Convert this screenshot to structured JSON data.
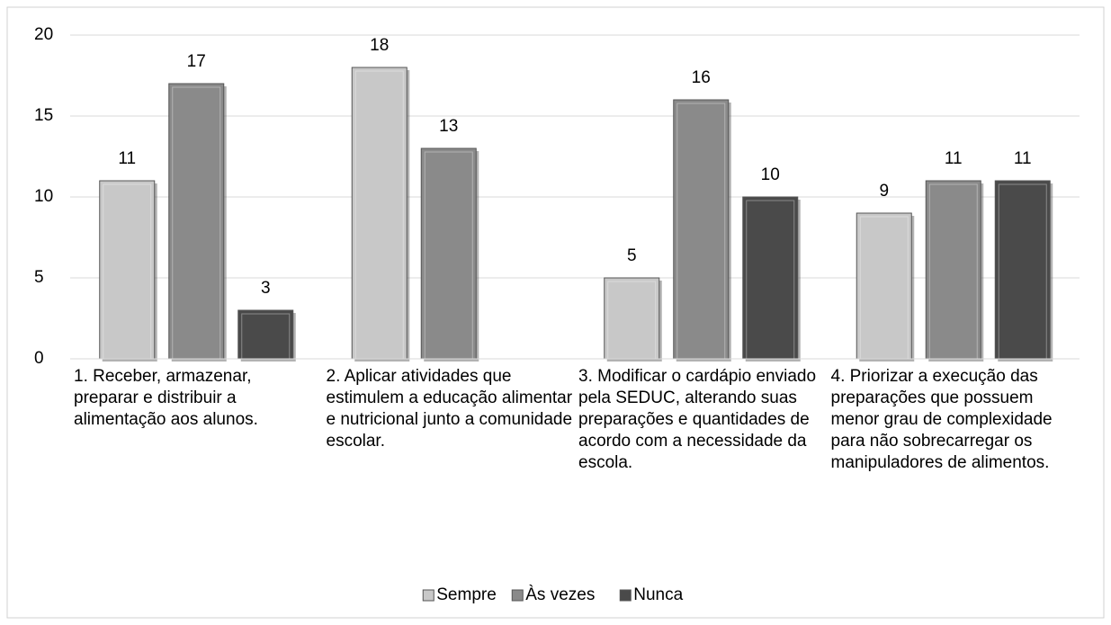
{
  "chart_data": {
    "type": "bar",
    "categories": [
      "1. Receber, armazenar, preparar e distribuir a alimentação aos alunos.",
      "2. Aplicar atividades que estimulem a educação alimentar e nutricional junto a comunidade escolar.",
      "3. Modificar o cardápio enviado pela SEDUC, alterando suas preparações e quantidades de acordo com a necessidade da escola.",
      "4. Priorizar a execução das preparações que possuem menor grau de complexidade para não sobrecarregar os manipuladores de alimentos."
    ],
    "series": [
      {
        "name": "Sempre",
        "color": "#c8c8c8",
        "values": [
          11,
          18,
          5,
          9
        ]
      },
      {
        "name": "Às vezes",
        "color": "#8a8a8a",
        "values": [
          17,
          13,
          16,
          11
        ]
      },
      {
        "name": "Nunca",
        "color": "#4a4a4a",
        "values": [
          3,
          null,
          10,
          11
        ]
      }
    ],
    "ylim": [
      0,
      20
    ],
    "yticks": [
      0,
      5,
      10,
      15,
      20
    ],
    "grid": true,
    "legend": "bottom"
  }
}
